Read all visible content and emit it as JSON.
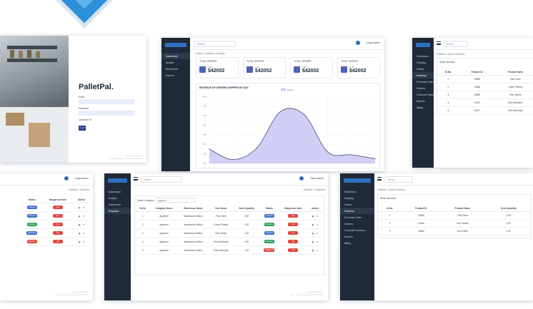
{
  "colors": {
    "sidebar": "#1e2a38",
    "accent": "#2f6fbf",
    "chart_fill": "#c9c7f3",
    "chart_line": "#4b4a7a"
  },
  "login": {
    "brand": "PalletPal.",
    "email_label": "Email",
    "password_label": "Password",
    "customer_id_label": "Customer ID",
    "button": "Login",
    "watermark": [
      "Activate Windows",
      "Go to Settings to activate Windows."
    ]
  },
  "dashboard": {
    "search_placeholder": "Search",
    "user_label": "Daryl Admin",
    "crumbs": "Palletz  /  Analytics  /  Analytic",
    "nav": [
      "Dashboard",
      "Analytic",
      "Warehouse",
      "Reports"
    ],
    "cards": [
      {
        "title": "TOTAL ORDERS",
        "sub": "USD",
        "value": "$42002"
      },
      {
        "title": "TOTAL ORDERS",
        "sub": "USD",
        "value": "$42002"
      },
      {
        "title": "TOTAL ORDERS",
        "sub": "USD",
        "value": "$42002"
      },
      {
        "title": "TOTAL ORDERS",
        "sub": "USD",
        "value": "$42002"
      }
    ],
    "chart_title": "REVENUE OF ORDERS SHIPPED BY DAY",
    "legend": "Series"
  },
  "chart_data": {
    "type": "area",
    "title": "REVENUE OF ORDERS SHIPPED BY DAY",
    "legend": [
      "Series"
    ],
    "ylabels": [
      "800",
      "700",
      "600",
      "500",
      "400",
      "300",
      "200",
      "100"
    ],
    "x": [
      1,
      2,
      3,
      4,
      5,
      6,
      7,
      8
    ],
    "values": [
      250,
      140,
      260,
      640,
      610,
      220,
      190,
      150
    ],
    "ylim": [
      100,
      800
    ],
    "grid": true
  },
  "inventory_top": {
    "search_placeholder": "Search",
    "crumbs": "Palletize  /  Stock Inventory",
    "section": "Stock Inventory",
    "nav": [
      "Dashboard",
      "Shipping",
      "Orders",
      "Inventory",
      "Purchase Order",
      "Delivery",
      "Customer Directory",
      "Reports",
      "Billing"
    ],
    "headers": [
      "Sr.No.",
      "Product ID",
      "Product Name"
    ],
    "rows": [
      [
        "1",
        "10656",
        "Pink Tshirt"
      ],
      [
        "2",
        "10656",
        "Green Plimbly"
      ],
      [
        "3",
        "10656",
        "Pink Tshirts"
      ],
      [
        "4",
        "10670",
        "Red Deliveries"
      ],
      [
        "5",
        "10671",
        "Pink Deliveries"
      ]
    ]
  },
  "orders_left": {
    "user_label": "Daryl Admin",
    "crumbs": "Palletize  /  Shipment",
    "headers": [
      "Status",
      "Dangerous Item",
      "Action"
    ],
    "rows": [
      {
        "status": "Shipped",
        "status_color": "blue",
        "danger": "Yes"
      },
      {
        "status": "Shipped",
        "status_color": "blue",
        "danger": "Yes"
      },
      {
        "status": "Pending",
        "status_color": "green",
        "danger": "Yes"
      },
      {
        "status": "Delivered",
        "status_color": "blue",
        "danger": "Yes"
      },
      {
        "status": "Pending",
        "status_color": "red",
        "danger": "Yes"
      }
    ],
    "watermark": [
      "Activate Windows",
      "Go to Settings to activate Windows."
    ]
  },
  "shipments": {
    "search_placeholder": "Search",
    "user_label": "Daryl Admin",
    "crumbs": "Palletize  /  Shipment",
    "nav": [
      "Dashboard",
      "Analytic",
      "Warehouse",
      "Shipment"
    ],
    "filter_label": "Select Company",
    "filter_value": "Applimer",
    "headers": [
      "Sr.No.",
      "Company Name",
      "Warehouse Name",
      "Item Name",
      "Send Quantity",
      "Status",
      "Dangerous Item",
      "Action"
    ],
    "rows": [
      {
        "no": "1",
        "company": "Applimer",
        "warehouse": "Warehouse Mellon",
        "item": "Pink Tshirt",
        "qty": "2.00",
        "status": "Shipped",
        "status_color": "blue",
        "danger": "Yes"
      },
      {
        "no": "2",
        "company": "Applimer",
        "warehouse": "Warehouse Mellon",
        "item": "Green Plimbly",
        "qty": "2.00",
        "status": "Pending",
        "status_color": "green",
        "danger": "Yes"
      },
      {
        "no": "3",
        "company": "Applimer",
        "warehouse": "Warehouse Mellon",
        "item": "Pink Tshirts",
        "qty": "2.00",
        "status": "Shipped",
        "status_color": "blue",
        "danger": "Yes"
      },
      {
        "no": "4",
        "company": "Applimer",
        "warehouse": "Warehouse Mellon",
        "item": "Red Deliveries",
        "qty": "2.00",
        "status": "Pending",
        "status_color": "green",
        "danger": "Yes"
      },
      {
        "no": "5",
        "company": "Applimer",
        "warehouse": "Warehouse Mellon",
        "item": "Pink Deliveries",
        "qty": "2.00",
        "status": "Delivered",
        "status_color": "red",
        "danger": "Yes"
      }
    ],
    "watermark": [
      "Activate Windows",
      "Go to Settings to activate Windows."
    ]
  },
  "inventory_bottom": {
    "search_placeholder": "Search",
    "crumbs": "Palletize  /  Stock Inventory",
    "section": "Stock Inventory",
    "nav": [
      "Dashboard",
      "Shipping",
      "Orders",
      "Inventory",
      "Purchase Order",
      "Delivery",
      "Customer Directory",
      "Reports",
      "Billing"
    ],
    "headers": [
      "Sr.No.",
      "Product ID",
      "Product Name",
      "Send Quantity"
    ],
    "rows": [
      [
        "1",
        "10656",
        "Pink Tshirt",
        "2.00"
      ],
      [
        "2",
        "10656",
        "Pink Tshirts",
        "2.00"
      ],
      [
        "3",
        "10656",
        "Red Shirts",
        "2.00"
      ]
    ]
  }
}
